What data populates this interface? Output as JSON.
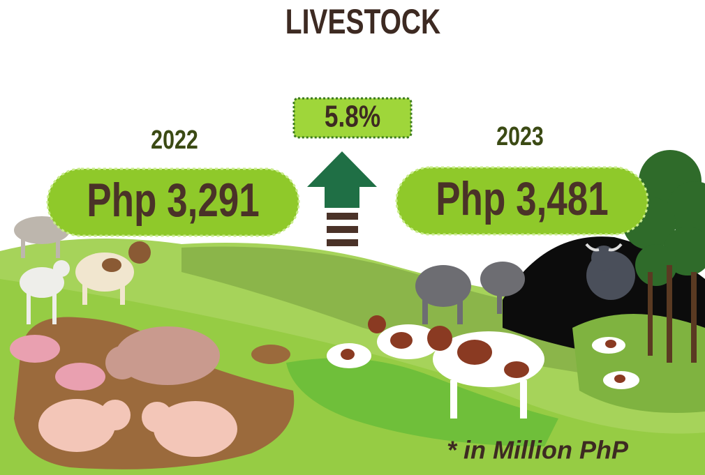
{
  "header": {
    "title": "LIVESTOCK"
  },
  "change": {
    "label": "5.8%"
  },
  "left": {
    "year": "2022",
    "value": "Php 3,291"
  },
  "right": {
    "year": "2023",
    "value": "Php 3,481"
  },
  "note": "* in Million PhP"
}
